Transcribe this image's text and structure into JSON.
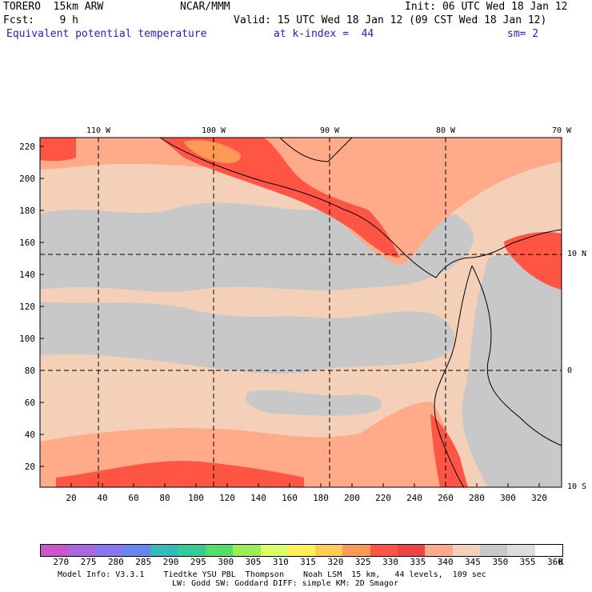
{
  "header": {
    "model": "TORERO  15km ARW",
    "center": "NCAR/MMM",
    "init": "Init: 06 UTC Wed 18 Jan 12",
    "fcst": "Fcst:    9 h",
    "valid": "Valid: 15 UTC Wed 18 Jan 12 (09 CST Wed 18 Jan 12)",
    "field": "Equivalent potential temperature",
    "level": "at k-index =  44",
    "smooth": "sm= 2"
  },
  "map_axes": {
    "top_lon_labels": [
      "110 W",
      "100 W",
      "90 W",
      "80 W",
      "70 W"
    ],
    "right_lat_labels": [
      "10 N",
      "0",
      "10 S"
    ],
    "left_ticks": [
      "220",
      "200",
      "180",
      "160",
      "140",
      "120",
      "100",
      "80",
      "60",
      "40",
      "20"
    ],
    "bottom_ticks": [
      "20",
      "40",
      "60",
      "80",
      "100",
      "120",
      "140",
      "160",
      "180",
      "200",
      "220",
      "240",
      "260",
      "280",
      "300",
      "320"
    ]
  },
  "colorbar": {
    "levels": [
      "270",
      "275",
      "280",
      "285",
      "290",
      "295",
      "300",
      "305",
      "310",
      "315",
      "320",
      "325",
      "330",
      "335",
      "340",
      "345",
      "350",
      "355",
      "360"
    ],
    "unit": "K",
    "colors": [
      "#cc55cc",
      "#aa66dd",
      "#8877ee",
      "#6688ee",
      "#33bbbb",
      "#33cc99",
      "#55dd66",
      "#99ee55",
      "#ddff66",
      "#ffee55",
      "#ffcc55",
      "#ff9955",
      "#ff5544",
      "#ee4444",
      "#ffaa88",
      "#f5d0b8",
      "#c8c8c8",
      "#dddddd",
      "#ffffff"
    ]
  },
  "footer": {
    "line1": "Model Info: V3.3.1    Tiedtke YSU PBL  Thompson    Noah LSM  15 km,   44 levels,  109 sec",
    "line2": "LW: Godd SW: Goddard DIFF: simple KM: 2D Smagor"
  }
}
